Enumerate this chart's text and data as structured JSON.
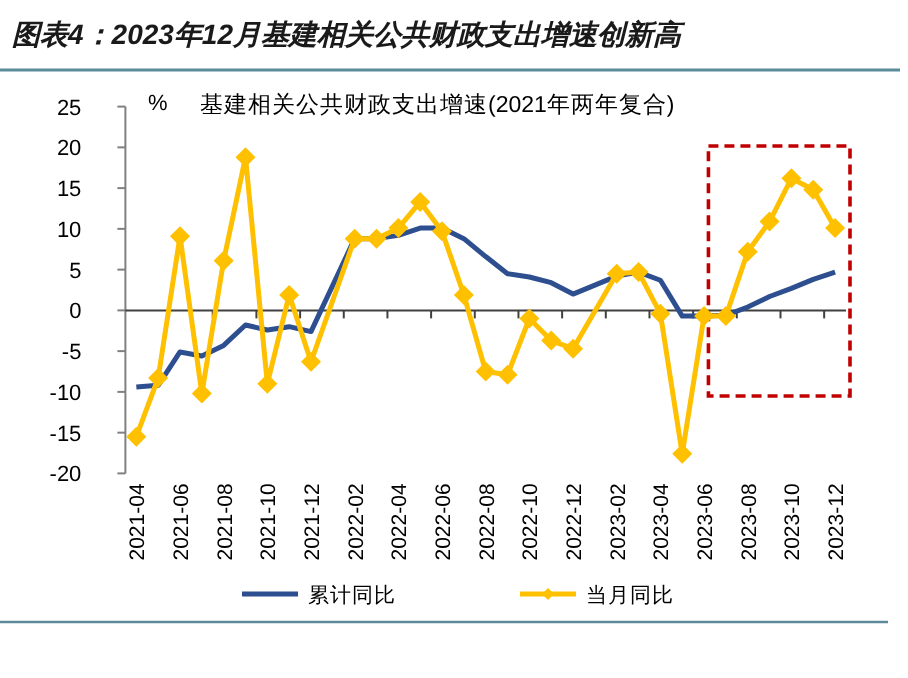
{
  "chart_data": {
    "type": "line",
    "title": "图表4：2023年12月基建相关公共财政支出增速创新高",
    "subtitle": "基建相关公共财政支出增速(2021年两年复合)",
    "ylabel": "%",
    "categories": [
      "2021-04",
      null,
      "2021-06",
      null,
      "2021-08",
      null,
      "2021-10",
      null,
      "2021-12",
      null,
      "2022-02",
      null,
      "2022-04",
      null,
      "2022-06",
      null,
      "2022-08",
      null,
      "2022-10",
      null,
      "2022-12",
      null,
      "2023-02",
      null,
      "2023-04",
      null,
      "2023-06",
      null,
      "2023-08",
      null,
      "2023-10",
      null,
      "2023-12"
    ],
    "ylim": [
      -20,
      25
    ],
    "yticks": [
      -20,
      -15,
      -10,
      -5,
      0,
      5,
      10,
      15,
      20,
      25
    ],
    "legend": "bottom",
    "series": [
      {
        "name": "累计同比",
        "color": "#2e4f8f",
        "marker": "none",
        "values": [
          -9.4,
          -9.2,
          -5.1,
          -5.6,
          -4.3,
          -1.8,
          -2.4,
          -2.0,
          -2.6,
          null,
          8.8,
          8.8,
          9.2,
          10.1,
          10.1,
          8.8,
          6.6,
          4.5,
          4.1,
          3.4,
          2.0,
          null,
          4.2,
          4.7,
          3.7,
          -0.7,
          -0.7,
          -0.6,
          0.4,
          1.7,
          2.7,
          3.8,
          4.7
        ]
      },
      {
        "name": "当月同比",
        "color": "#ffc000",
        "marker": "diamond",
        "values": [
          -15.5,
          -8.3,
          9.1,
          -10.2,
          6.1,
          18.8,
          -9.0,
          1.9,
          -6.3,
          null,
          8.8,
          8.8,
          10.1,
          13.3,
          9.7,
          1.9,
          -7.5,
          -7.9,
          -1.0,
          -3.7,
          -4.7,
          null,
          4.5,
          4.7,
          -0.4,
          -17.6,
          -0.7,
          -0.7,
          7.2,
          10.9,
          16.2,
          14.8,
          10.1
        ]
      }
    ]
  }
}
